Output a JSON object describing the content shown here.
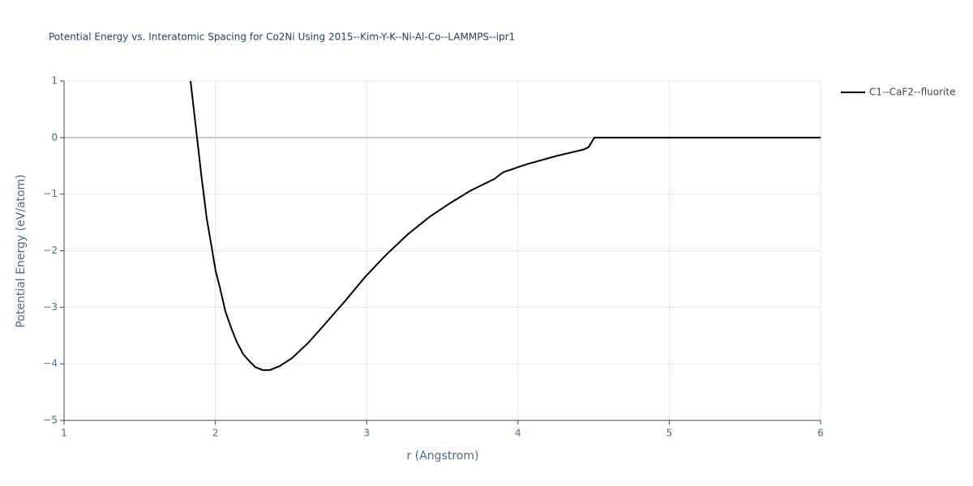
{
  "chart_data": {
    "type": "line",
    "title": "Potential Energy vs. Interatomic Spacing for Co2Ni Using 2015--Kim-Y-K--Ni-Al-Co--LAMMPS--ipr1",
    "x_label": "r (Angstrom)",
    "y_label": "Potential Energy (eV/atom)",
    "x": [
      1.836,
      1.879,
      1.906,
      1.943,
      1.975,
      2.002,
      2.029,
      2.066,
      2.104,
      2.141,
      2.184,
      2.227,
      2.265,
      2.313,
      2.361,
      2.425,
      2.506,
      2.613,
      2.72,
      2.854,
      2.988,
      3.122,
      3.272,
      3.417,
      3.551,
      3.685,
      3.846,
      3.878,
      3.905,
      4.06,
      4.248,
      4.435,
      4.467,
      4.505,
      5,
      5.5,
      6
    ],
    "series": [
      {
        "name": "C1--CaF2--fluorite",
        "color": "#000000",
        "values": [
          1.0,
          0,
          -0.64,
          -1.43,
          -1.93,
          -2.36,
          -2.64,
          -3.07,
          -3.36,
          -3.61,
          -3.83,
          -3.96,
          -4.06,
          -4.11,
          -4.11,
          -4.04,
          -3.9,
          -3.63,
          -3.31,
          -2.9,
          -2.47,
          -2.09,
          -1.71,
          -1.4,
          -1.16,
          -0.94,
          -0.73,
          -0.66,
          -0.61,
          -0.47,
          -0.33,
          -0.21,
          -0.17,
          0,
          0,
          0,
          0
        ]
      }
    ],
    "xlim": [
      1,
      6
    ],
    "ylim": [
      -5,
      1
    ],
    "xticks": [
      1,
      2,
      3,
      4,
      5,
      6
    ],
    "yticks": [
      {
        "value": -5,
        "label": "−5"
      },
      {
        "value": -4,
        "label": "−4"
      },
      {
        "value": -3,
        "label": "−3"
      },
      {
        "value": -2,
        "label": "−2"
      },
      {
        "value": -1,
        "label": "−1"
      },
      0,
      1
    ],
    "grid": true,
    "legend": "right"
  }
}
